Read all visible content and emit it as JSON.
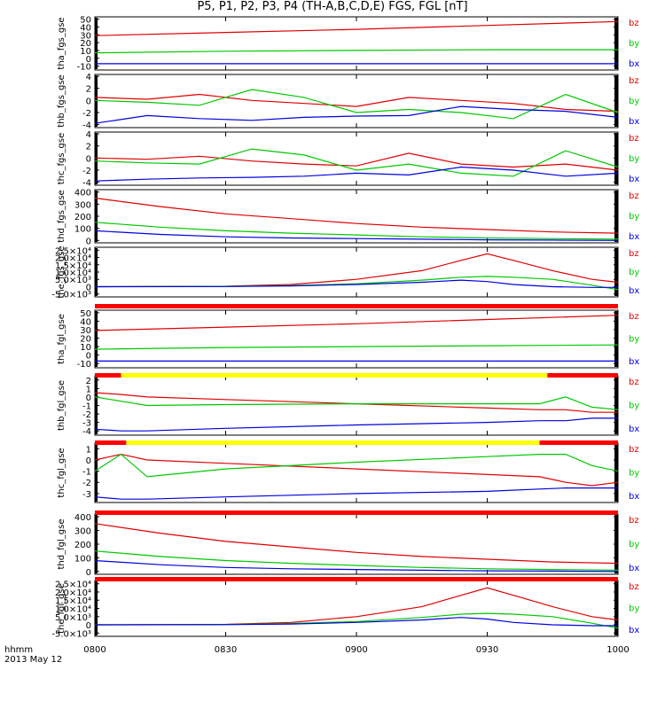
{
  "title": "P5, P1, P2, P3, P4 (TH-A,B,C,D,E) FGS, FGL [nT]",
  "footer": {
    "hhmm": "hhmm",
    "date": "2013 May 12"
  },
  "colors": {
    "bz": "#e00000",
    "by": "#00c800",
    "bx": "#0000e0",
    "flag_red": "#ff0000",
    "flag_yellow": "#ffff00"
  },
  "chart_data": {
    "type": "line",
    "x_ticks": [
      "0800",
      "0830",
      "0900",
      "0930",
      "1000"
    ],
    "x_range_hours": [
      8.0,
      10.0
    ],
    "panels": [
      {
        "ylabel": "tha_fgs_gse",
        "ylim": [
          -15,
          53
        ],
        "yticks": [
          "50",
          "40",
          "30",
          "20",
          "10",
          "0",
          "-10"
        ],
        "ytick_vals": [
          50,
          40,
          30,
          20,
          10,
          0,
          -10
        ],
        "series": [
          {
            "name": "bz",
            "x": [
              8.0,
              8.5,
              9.0,
              9.5,
              10.0
            ],
            "y": [
              29,
              33,
              37,
              42,
              47
            ]
          },
          {
            "name": "by",
            "x": [
              8.0,
              8.5,
              9.0,
              9.5,
              10.0
            ],
            "y": [
              7,
              9,
              10,
              11,
              11
            ]
          },
          {
            "name": "bx",
            "x": [
              8.0,
              8.5,
              9.0,
              9.5,
              10.0
            ],
            "y": [
              -7,
              -7,
              -7,
              -7,
              -7
            ]
          }
        ]
      },
      {
        "ylabel": "thb_fgs_gse",
        "ylim": [
          -4.5,
          4.3
        ],
        "yticks": [
          "4",
          "2",
          "0",
          "-2",
          "-4"
        ],
        "ytick_vals": [
          4,
          2,
          0,
          -2,
          -4
        ],
        "series": [
          {
            "name": "bz",
            "x": [
              8.0,
              8.2,
              8.4,
              8.6,
              8.8,
              9.0,
              9.2,
              9.4,
              9.6,
              9.8,
              10.0
            ],
            "y": [
              0.5,
              0.2,
              1.0,
              0.0,
              -0.5,
              -1.0,
              0.5,
              0.0,
              -0.5,
              -1.5,
              -1.8
            ]
          },
          {
            "name": "by",
            "x": [
              8.0,
              8.2,
              8.4,
              8.6,
              8.8,
              9.0,
              9.2,
              9.4,
              9.6,
              9.8,
              10.0
            ],
            "y": [
              0.0,
              -0.3,
              -0.8,
              1.8,
              0.5,
              -2.0,
              -1.5,
              -2.0,
              -3.0,
              1.0,
              -2.0
            ]
          },
          {
            "name": "bx",
            "x": [
              8.0,
              8.2,
              8.4,
              8.6,
              8.8,
              9.0,
              9.2,
              9.4,
              9.6,
              9.8,
              10.0
            ],
            "y": [
              -3.8,
              -2.5,
              -3.0,
              -3.3,
              -2.8,
              -2.6,
              -2.5,
              -1.0,
              -1.5,
              -1.8,
              -2.8
            ]
          }
        ]
      },
      {
        "ylabel": "thc_fgs_gse",
        "ylim": [
          -4.5,
          4.3
        ],
        "yticks": [
          "4",
          "2",
          "0",
          "-2",
          "-4"
        ],
        "ytick_vals": [
          4,
          2,
          0,
          -2,
          -4
        ],
        "series": [
          {
            "name": "bz",
            "x": [
              8.0,
              8.2,
              8.4,
              8.6,
              8.8,
              9.0,
              9.2,
              9.4,
              9.6,
              9.8,
              10.0
            ],
            "y": [
              0.0,
              -0.2,
              0.3,
              -0.5,
              -1.0,
              -1.3,
              0.8,
              -1.0,
              -1.5,
              -1.0,
              -2.0
            ]
          },
          {
            "name": "by",
            "x": [
              8.0,
              8.2,
              8.4,
              8.6,
              8.8,
              9.0,
              9.2,
              9.4,
              9.6,
              9.8,
              10.0
            ],
            "y": [
              -0.5,
              -0.8,
              -1.0,
              1.5,
              0.5,
              -2.0,
              -1.0,
              -2.5,
              -3.0,
              1.2,
              -1.5
            ]
          },
          {
            "name": "bx",
            "x": [
              8.0,
              8.2,
              8.4,
              8.6,
              8.8,
              9.0,
              9.2,
              9.4,
              9.6,
              9.8,
              10.0
            ],
            "y": [
              -3.8,
              -3.5,
              -3.3,
              -3.2,
              -3.0,
              -2.5,
              -2.8,
              -1.5,
              -2.0,
              -3.0,
              -2.5
            ]
          }
        ]
      },
      {
        "ylabel": "thd_fgs_gse",
        "ylim": [
          -20,
          420
        ],
        "yticks": [
          "400",
          "300",
          "200",
          "100",
          "0"
        ],
        "ytick_vals": [
          400,
          300,
          200,
          100,
          0
        ],
        "series": [
          {
            "name": "bz",
            "x": [
              8.0,
              8.25,
              8.5,
              8.75,
              9.0,
              9.25,
              9.5,
              9.75,
              10.0
            ],
            "y": [
              350,
              280,
              220,
              180,
              140,
              110,
              90,
              70,
              60
            ]
          },
          {
            "name": "by",
            "x": [
              8.0,
              8.25,
              8.5,
              8.75,
              9.0,
              9.25,
              9.5,
              9.75,
              10.0
            ],
            "y": [
              150,
              110,
              80,
              60,
              45,
              30,
              20,
              15,
              10
            ]
          },
          {
            "name": "bx",
            "x": [
              8.0,
              8.25,
              8.5,
              8.75,
              9.0,
              9.25,
              9.5,
              9.75,
              10.0
            ],
            "y": [
              80,
              50,
              30,
              20,
              15,
              10,
              5,
              3,
              0
            ]
          }
        ]
      },
      {
        "ylabel": "the_fgs_gse",
        "ylim": [
          -7000,
          27000
        ],
        "yticks": [
          "2.5×10⁴",
          "2.0×10⁴",
          "1.5×10⁴",
          "1.0×10⁴",
          "5.0×10³",
          "0",
          "-5.0×10³"
        ],
        "ytick_vals": [
          25000,
          20000,
          15000,
          10000,
          5000,
          0,
          -5000
        ],
        "series": [
          {
            "name": "bz",
            "x": [
              8.0,
              8.5,
              8.75,
              9.0,
              9.25,
              9.4,
              9.5,
              9.6,
              9.75,
              9.9,
              10.0
            ],
            "y": [
              0,
              300,
              1500,
              5000,
              11000,
              18000,
              22500,
              18000,
              11000,
              5000,
              3000
            ]
          },
          {
            "name": "by",
            "x": [
              8.0,
              8.5,
              8.75,
              9.0,
              9.25,
              9.4,
              9.5,
              9.6,
              9.75,
              9.9,
              10.0
            ],
            "y": [
              0,
              200,
              800,
              2000,
              4500,
              6500,
              7000,
              6500,
              5000,
              1000,
              -2000
            ]
          },
          {
            "name": "bx",
            "x": [
              8.0,
              8.5,
              8.75,
              9.0,
              9.25,
              9.4,
              9.5,
              9.6,
              9.75,
              9.9,
              10.0
            ],
            "y": [
              0,
              100,
              500,
              1500,
              3000,
              4500,
              3500,
              1500,
              0,
              -500,
              -500
            ]
          }
        ]
      },
      {
        "ylabel": "tha_fgl_gse",
        "ylim": [
          -15,
          53
        ],
        "yticks": [
          "50",
          "40",
          "30",
          "20",
          "10",
          "0",
          "-10"
        ],
        "ytick_vals": [
          50,
          40,
          30,
          20,
          10,
          0,
          -10
        ],
        "series": [
          {
            "name": "bz",
            "x": [
              8.0,
              8.5,
              9.0,
              9.5,
              10.0
            ],
            "y": [
              29,
              33,
              37,
              42,
              47
            ]
          },
          {
            "name": "by",
            "x": [
              8.0,
              8.5,
              9.0,
              9.5,
              10.0
            ],
            "y": [
              7,
              9,
              10,
              11,
              12
            ]
          },
          {
            "name": "bx",
            "x": [
              8.0,
              8.5,
              9.0,
              9.5,
              10.0
            ],
            "y": [
              -7,
              -7,
              -7,
              -7,
              -7
            ]
          }
        ]
      },
      {
        "ylabel": "thb_fgl_gse",
        "ylim": [
          -4.5,
          2.5
        ],
        "yticks": [
          "2",
          "1",
          "0",
          "-1",
          "-2",
          "-3",
          "-4"
        ],
        "ytick_vals": [
          2,
          1,
          0,
          -1,
          -2,
          -3,
          -4
        ],
        "series": [
          {
            "name": "bz",
            "x": [
              8.0,
              8.1,
              8.2,
              8.5,
              9.0,
              9.5,
              9.7,
              9.8,
              9.9,
              10.0
            ],
            "y": [
              0.5,
              0.3,
              0.0,
              -0.3,
              -0.8,
              -1.3,
              -1.5,
              -1.5,
              -1.8,
              -1.8
            ]
          },
          {
            "name": "by",
            "x": [
              8.0,
              8.1,
              8.2,
              8.5,
              9.0,
              9.5,
              9.7,
              9.8,
              9.9,
              10.0
            ],
            "y": [
              0.0,
              -0.5,
              -1.0,
              -0.9,
              -0.8,
              -0.8,
              -0.8,
              0.0,
              -1.2,
              -1.5
            ]
          },
          {
            "name": "bx",
            "x": [
              8.0,
              8.1,
              8.2,
              8.5,
              9.0,
              9.5,
              9.7,
              9.8,
              9.9,
              10.0
            ],
            "y": [
              -3.8,
              -4.0,
              -4.0,
              -3.7,
              -3.3,
              -3.0,
              -2.8,
              -2.8,
              -2.5,
              -2.5
            ]
          }
        ]
      },
      {
        "ylabel": "thc_fgl_gse",
        "ylim": [
          -3.8,
          1.5
        ],
        "yticks": [
          "1",
          "0",
          "-1",
          "-2",
          "-3"
        ],
        "ytick_vals": [
          1,
          0,
          -1,
          -2,
          -3
        ],
        "series": [
          {
            "name": "bz",
            "x": [
              8.0,
              8.1,
              8.2,
              8.5,
              9.0,
              9.5,
              9.7,
              9.8,
              9.9,
              10.0
            ],
            "y": [
              0.0,
              0.5,
              0.0,
              -0.3,
              -0.8,
              -1.3,
              -1.5,
              -2.0,
              -2.3,
              -2.0
            ]
          },
          {
            "name": "by",
            "x": [
              8.0,
              8.1,
              8.2,
              8.5,
              9.0,
              9.5,
              9.7,
              9.8,
              9.9,
              10.0
            ],
            "y": [
              -1.0,
              0.5,
              -1.5,
              -0.8,
              -0.2,
              0.3,
              0.5,
              0.5,
              -0.5,
              -1.0
            ]
          },
          {
            "name": "bx",
            "x": [
              8.0,
              8.1,
              8.2,
              8.5,
              9.0,
              9.5,
              9.7,
              9.8,
              9.9,
              10.0
            ],
            "y": [
              -3.3,
              -3.5,
              -3.5,
              -3.3,
              -3.0,
              -2.8,
              -2.6,
              -2.5,
              -2.5,
              -2.5
            ]
          }
        ]
      },
      {
        "ylabel": "thd_fgl_gse",
        "ylim": [
          -20,
          420
        ],
        "yticks": [
          "400",
          "300",
          "200",
          "100",
          "0"
        ],
        "ytick_vals": [
          400,
          300,
          200,
          100,
          0
        ],
        "series": [
          {
            "name": "bz",
            "x": [
              8.0,
              8.25,
              8.5,
              8.75,
              9.0,
              9.25,
              9.5,
              9.75,
              10.0
            ],
            "y": [
              350,
              280,
              220,
              180,
              140,
              110,
              90,
              70,
              60
            ]
          },
          {
            "name": "by",
            "x": [
              8.0,
              8.25,
              8.5,
              8.75,
              9.0,
              9.25,
              9.5,
              9.75,
              10.0
            ],
            "y": [
              150,
              110,
              80,
              60,
              45,
              30,
              20,
              15,
              10
            ]
          },
          {
            "name": "bx",
            "x": [
              8.0,
              8.25,
              8.5,
              8.75,
              9.0,
              9.25,
              9.5,
              9.75,
              10.0
            ],
            "y": [
              80,
              50,
              30,
              20,
              15,
              10,
              5,
              3,
              0
            ]
          }
        ]
      },
      {
        "ylabel": "the_fgl_gse",
        "ylim": [
          -7000,
          27000
        ],
        "yticks": [
          "2.5×10⁴",
          "2.0×10⁴",
          "1.5×10⁴",
          "1.0×10⁴",
          "5.0×10³",
          "0",
          "-5.0×10³"
        ],
        "ytick_vals": [
          25000,
          20000,
          15000,
          10000,
          5000,
          0,
          -5000
        ],
        "series": [
          {
            "name": "bz",
            "x": [
              8.0,
              8.5,
              8.75,
              9.0,
              9.25,
              9.4,
              9.5,
              9.6,
              9.75,
              9.9,
              10.0
            ],
            "y": [
              0,
              300,
              1500,
              5000,
              11000,
              18000,
              22500,
              18000,
              11000,
              5000,
              3000
            ]
          },
          {
            "name": "by",
            "x": [
              8.0,
              8.5,
              8.75,
              9.0,
              9.25,
              9.4,
              9.5,
              9.6,
              9.75,
              9.9,
              10.0
            ],
            "y": [
              0,
              200,
              800,
              2000,
              4500,
              6500,
              7000,
              6500,
              5000,
              1000,
              -2000
            ]
          },
          {
            "name": "bx",
            "x": [
              8.0,
              8.5,
              8.75,
              9.0,
              9.25,
              9.4,
              9.5,
              9.6,
              9.75,
              9.9,
              10.0
            ],
            "y": [
              0,
              100,
              500,
              1500,
              3000,
              4500,
              3500,
              1500,
              0,
              -500,
              -500
            ]
          }
        ]
      }
    ],
    "flag_bars": [
      {
        "after_panel": 4,
        "segments": [
          {
            "from": 8.0,
            "to": 10.0,
            "color": "red"
          }
        ]
      },
      {
        "after_panel": 5,
        "segments": [
          {
            "from": 8.0,
            "to": 8.1,
            "color": "red"
          },
          {
            "from": 8.1,
            "to": 9.73,
            "color": "yellow"
          },
          {
            "from": 9.73,
            "to": 10.0,
            "color": "red"
          }
        ]
      },
      {
        "after_panel": 6,
        "segments": [
          {
            "from": 8.0,
            "to": 8.12,
            "color": "red"
          },
          {
            "from": 8.12,
            "to": 9.7,
            "color": "yellow"
          },
          {
            "from": 9.7,
            "to": 10.0,
            "color": "red"
          }
        ]
      },
      {
        "after_panel": 7,
        "segments": [
          {
            "from": 8.0,
            "to": 10.0,
            "color": "red"
          }
        ]
      },
      {
        "after_panel": 8,
        "segments": [
          {
            "from": 8.0,
            "to": 10.0,
            "color": "red"
          }
        ]
      }
    ],
    "legend": [
      "bz",
      "by",
      "bx"
    ],
    "legend_placement": "right"
  }
}
